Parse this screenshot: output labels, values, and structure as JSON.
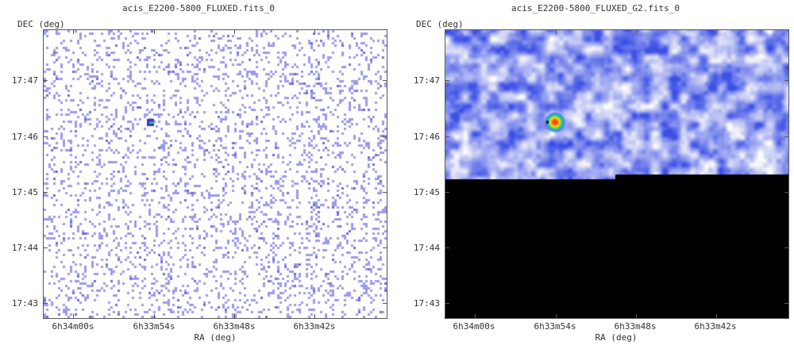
{
  "panels": [
    {
      "title": "acis_E2200-5800_FLUXED.fits_0",
      "ylabel": "DEC (deg)",
      "xlabel": "RA (deg)",
      "ytick_labels": [
        "17:47",
        "17:46",
        "17:45",
        "17:44",
        "17:43"
      ],
      "xtick_labels": [
        "6h34m00s",
        "6h33m54s",
        "6h33m48s",
        "6h33m42s"
      ],
      "style": "binned-counts",
      "colormap": "blue-white",
      "background_color": "#ffffff",
      "pixel_color": "#9b9bea"
    },
    {
      "title": "acis_E2200-5800_FLUXED_G2.fits_0",
      "ylabel": "DEC (deg)",
      "xlabel": "RA (deg)",
      "ytick_labels": [
        "17:47",
        "17:46",
        "17:45",
        "17:44",
        "17:43"
      ],
      "xtick_labels": [
        "6h34m00s",
        "6h33m54s",
        "6h33m48s",
        "6h33m42s"
      ],
      "style": "gaussian-smoothed",
      "colormap": "blue-white-rainbow",
      "background_color": "#7b8ef0"
    }
  ]
}
